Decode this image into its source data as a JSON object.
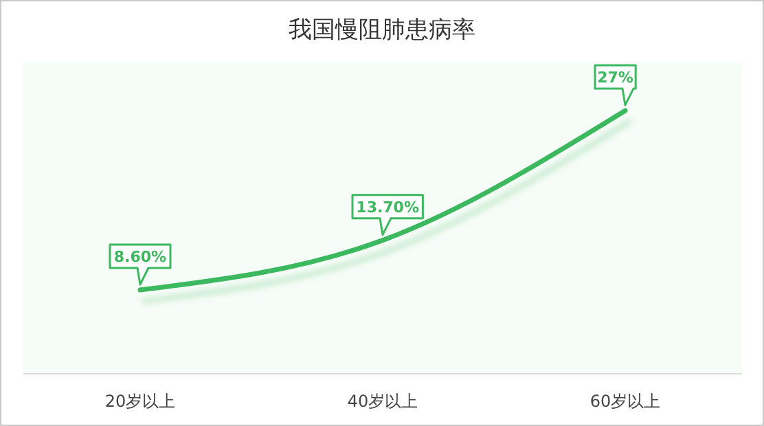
{
  "chart_data": {
    "type": "line",
    "title": "我国慢阻肺患病率",
    "categories": [
      "20岁以上",
      "40岁以上",
      "60岁以上"
    ],
    "series": [
      {
        "color": "#3cb95e",
        "values": [
          8.6,
          13.7,
          27
        ],
        "value_labels": [
          "8.60%",
          "13.70%",
          "27%"
        ]
      }
    ],
    "ylim": [
      0,
      32
    ],
    "tick_labels": "x",
    "grid": false,
    "marker": "none",
    "line_style": "solid"
  }
}
